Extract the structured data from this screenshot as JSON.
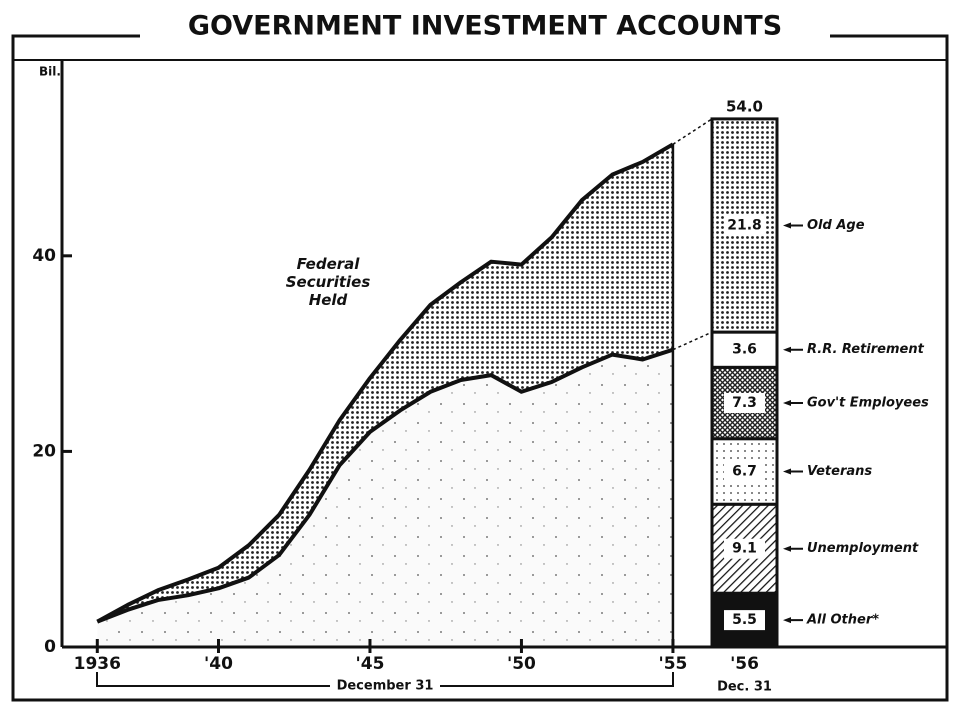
{
  "chart_data": {
    "type": "area",
    "title": "GOVERNMENT INVESTMENT ACCOUNTS",
    "y_unit": "Bil.",
    "x_label": "December 31",
    "x": [
      1936,
      1937,
      1938,
      1939,
      1940,
      1941,
      1942,
      1943,
      1944,
      1945,
      1946,
      1947,
      1948,
      1949,
      1950,
      1951,
      1952,
      1953,
      1954,
      1955
    ],
    "series": [
      {
        "color": "#111111",
        "values": [
          2.6,
          3.8,
          4.8,
          5.3,
          6.0,
          7.1,
          9.4,
          13.5,
          18.6,
          22.0,
          24.2,
          26.1,
          27.3,
          27.8,
          26.1,
          27.1,
          28.6,
          29.9,
          29.4,
          30.4
        ]
      },
      {
        "name": "Federal Securities Held",
        "color": "#111111",
        "values": [
          2.6,
          4.3,
          5.8,
          6.9,
          8.1,
          10.4,
          13.5,
          18.1,
          23.2,
          27.5,
          31.4,
          35.0,
          37.3,
          39.4,
          39.1,
          41.9,
          45.7,
          48.3,
          49.6,
          51.4
        ]
      }
    ],
    "xlim": [
      1935,
      1955.2
    ],
    "xticks": [
      {
        "value": 1936,
        "label": "1936"
      },
      {
        "value": 1940,
        "label": "'40"
      },
      {
        "value": 1945,
        "label": "'45"
      },
      {
        "value": 1950,
        "label": "'50"
      },
      {
        "value": 1955,
        "label": "'55"
      }
    ],
    "ylim": [
      0,
      59
    ],
    "yticks": [
      0,
      20,
      40
    ],
    "stacked_bar": {
      "category": "'56",
      "sublabel": "Dec. 31",
      "total": {
        "value": 54,
        "label": "54.0"
      },
      "segments": [
        "All Other*",
        "Unemployment",
        "Veterans",
        "Gov't Employees",
        "R.R. Retirement",
        "Old Age"
      ],
      "values": [
        5.5,
        9.1,
        6.7,
        7.3,
        3.6,
        21.8
      ]
    }
  }
}
